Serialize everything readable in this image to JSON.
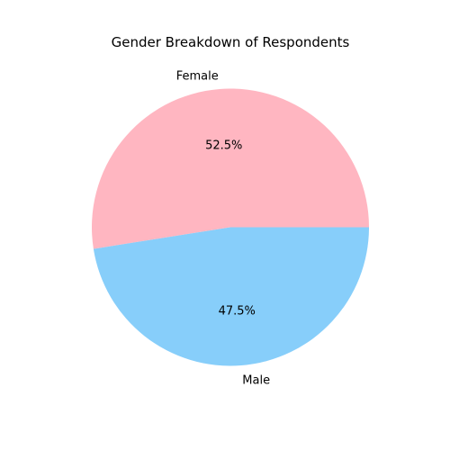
{
  "chart_data": {
    "type": "pie",
    "title": "Gender Breakdown of Respondents",
    "categories": [
      "Female",
      "Male"
    ],
    "values": [
      52.5,
      47.5
    ],
    "value_labels": [
      "52.5%",
      "47.5%"
    ],
    "colors": [
      "#ffb6c1",
      "#87cefa"
    ],
    "start_angle_deg": 0,
    "direction": "counterclockwise"
  }
}
